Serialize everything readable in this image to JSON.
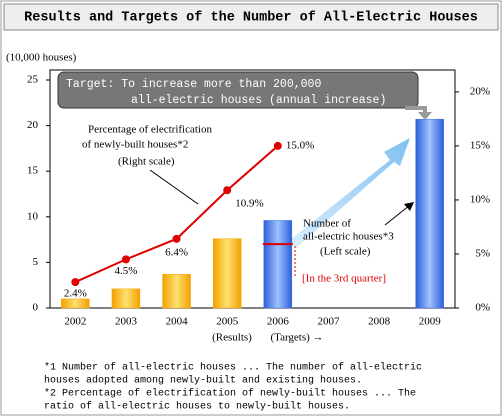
{
  "chart_data": {
    "type": "bar_line",
    "title": "Results and Targets of the Number of All-Electric Houses",
    "y_label": "(10,000 houses)",
    "categories": [
      "2002",
      "2003",
      "2004",
      "2005",
      "2006",
      "2007",
      "2008",
      "2009"
    ],
    "period_labels": [
      "(Results)",
      "(Targets) →"
    ],
    "ylim": [
      0,
      25
    ],
    "yticks": [
      0,
      5,
      10,
      15,
      20,
      25
    ],
    "y2lim": [
      0,
      21.1
    ],
    "y2ticks": [
      {
        "value": 0,
        "label": "0%"
      },
      {
        "value": 5,
        "label": "5%"
      },
      {
        "value": 10,
        "label": "10%"
      },
      {
        "value": 15,
        "label": "15%"
      },
      {
        "value": 20,
        "label": "20%"
      }
    ],
    "series": [
      {
        "type": "bar",
        "values": [
          1.0,
          2.1,
          3.7,
          7.6,
          9.6,
          null,
          null,
          20.7
        ],
        "colors": [
          "#f6a800",
          "#f6a800",
          "#f6a800",
          "#f6a800",
          "#3f6fe0",
          null,
          null,
          "#3f6fe0"
        ]
      },
      {
        "type": "marker",
        "color": "#e00000",
        "values": [
          null,
          null,
          null,
          null,
          7.0,
          null,
          null,
          null
        ]
      },
      {
        "type": "line",
        "axis": "y2",
        "color": "#e00000",
        "values": [
          2.4,
          4.5,
          6.4,
          10.9,
          15.0,
          null,
          null,
          null
        ],
        "value_labels": [
          "2.4%",
          "4.5%",
          "6.4%",
          "10.9%",
          "15.0%",
          null,
          null,
          null
        ]
      }
    ],
    "target_box": [
      "Target:  To increase more than 200,000",
      "all-electric houses (annual increase)"
    ],
    "annotations": [
      [
        "Percentage of electrification",
        "of newly-built houses*2",
        "(Right scale)"
      ],
      [
        "Number of",
        "all-electric houses*3",
        "(Left scale)"
      ],
      [
        "[In the 3rd quarter]"
      ]
    ],
    "footnotes": [
      "*1 Number of all-electric houses ... The number of all-electric",
      "   houses adopted among newly-built and existing houses.",
      "*2 Percentage of electrification of newly-built houses ... The",
      "   ratio of all-electric houses to newly-built houses."
    ]
  }
}
